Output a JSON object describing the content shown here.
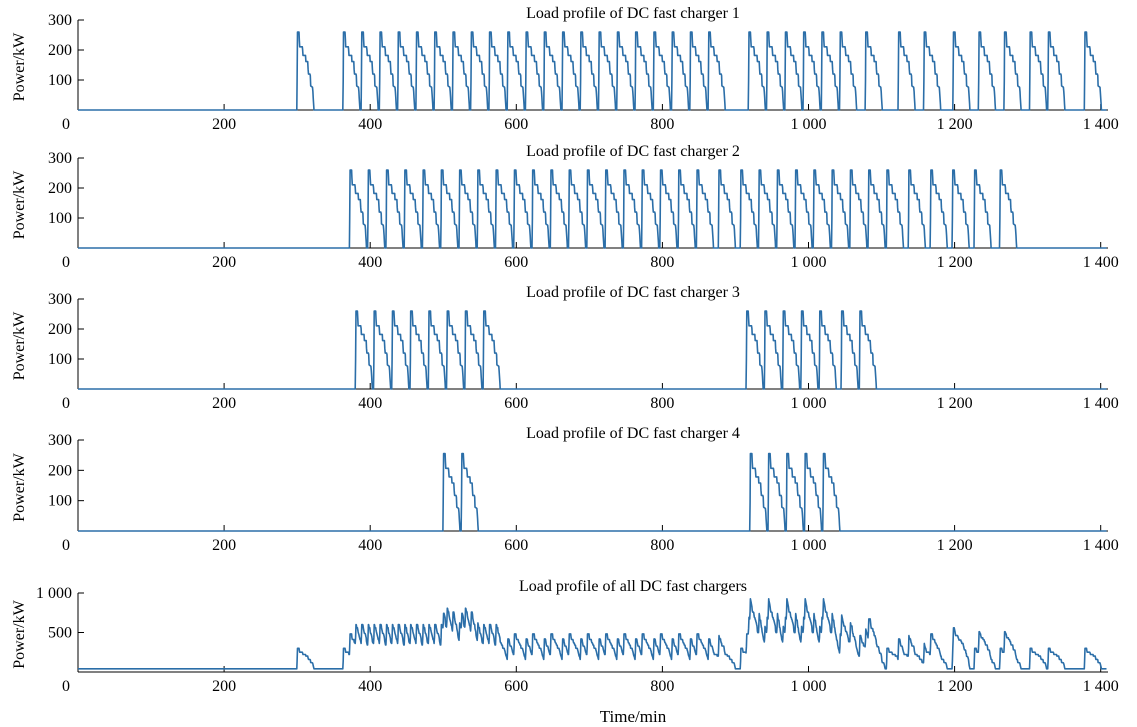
{
  "colors": {
    "line": "#2b6ea8",
    "axis": "#000000"
  },
  "chart_data": [
    {
      "type": "line",
      "title": "Load profile of DC fast charger 1",
      "ylabel": "Power/kW",
      "xlim": [
        0,
        1410
      ],
      "ylim": [
        0,
        300
      ],
      "yticks": [
        100,
        200,
        300
      ],
      "ytick_labels": [
        "100",
        "200",
        "300"
      ],
      "xticks": [
        0,
        200,
        400,
        600,
        800,
        1000,
        1200,
        1400
      ],
      "xtick_labels": [
        "0",
        "200",
        "400",
        "600",
        "800",
        "1 000",
        "1 200",
        "1 400"
      ],
      "session_peak_kw": 260,
      "session_length_min": 23,
      "session_starts_min": [
        300,
        363,
        388,
        413,
        438,
        463,
        488,
        513,
        538,
        563,
        588,
        613,
        638,
        663,
        688,
        713,
        738,
        763,
        788,
        813,
        838,
        863,
        918,
        943,
        968,
        993,
        1018,
        1043,
        1078,
        1123,
        1158,
        1198,
        1233,
        1268,
        1303,
        1328,
        1378
      ]
    },
    {
      "type": "line",
      "title": "Load profile of DC fast charger 2",
      "ylabel": "Power/kW",
      "xlim": [
        0,
        1410
      ],
      "ylim": [
        0,
        300
      ],
      "yticks": [
        100,
        200,
        300
      ],
      "ytick_labels": [
        "100",
        "200",
        "300"
      ],
      "xticks": [
        0,
        200,
        400,
        600,
        800,
        1000,
        1200,
        1400
      ],
      "xtick_labels": [
        "0",
        "200",
        "400",
        "600",
        "800",
        "1 000",
        "1 200",
        "1 400"
      ],
      "session_peak_kw": 260,
      "session_length_min": 23,
      "session_starts_min": [
        372,
        397,
        422,
        447,
        472,
        497,
        522,
        547,
        572,
        597,
        622,
        647,
        672,
        697,
        722,
        747,
        772,
        797,
        822,
        847,
        877,
        907,
        932,
        957,
        982,
        1007,
        1032,
        1057,
        1082,
        1107,
        1137,
        1167,
        1197,
        1227,
        1262
      ]
    },
    {
      "type": "line",
      "title": "Load profile of DC fast charger 3",
      "ylabel": "Power/kW",
      "xlim": [
        0,
        1410
      ],
      "ylim": [
        0,
        300
      ],
      "yticks": [
        100,
        200,
        300
      ],
      "ytick_labels": [
        "100",
        "200",
        "300"
      ],
      "xticks": [
        0,
        200,
        400,
        600,
        800,
        1000,
        1200,
        1400
      ],
      "xtick_labels": [
        "0",
        "200",
        "400",
        "600",
        "800",
        "1 000",
        "1 200",
        "1 400"
      ],
      "session_peak_kw": 260,
      "session_length_min": 23,
      "session_starts_min": [
        380,
        405,
        430,
        455,
        480,
        505,
        530,
        555,
        915,
        940,
        965,
        990,
        1015,
        1045,
        1070
      ]
    },
    {
      "type": "line",
      "title": "Load profile of DC fast charger 4",
      "ylabel": "Power/kW",
      "xlim": [
        0,
        1410
      ],
      "ylim": [
        0,
        300
      ],
      "yticks": [
        100,
        200,
        300
      ],
      "ytick_labels": [
        "100",
        "200",
        "300"
      ],
      "xticks": [
        0,
        200,
        400,
        600,
        800,
        1000,
        1200,
        1400
      ],
      "xtick_labels": [
        "0",
        "200",
        "400",
        "600",
        "800",
        "1 000",
        "1 200",
        "1 400"
      ],
      "session_peak_kw": 255,
      "session_length_min": 23,
      "session_starts_min": [
        500,
        525,
        920,
        945,
        970,
        995,
        1020
      ]
    },
    {
      "type": "line",
      "title": "Load profile of all DC fast chargers",
      "ylabel": "Power/kW",
      "xlabel": "Time/min",
      "xlim": [
        0,
        1410
      ],
      "ylim": [
        0,
        1000
      ],
      "yticks": [
        500,
        1000
      ],
      "ytick_labels": [
        "500",
        "1 000"
      ],
      "xticks": [
        0,
        200,
        400,
        600,
        800,
        1000,
        1200,
        1400
      ],
      "xtick_labels": [
        "0",
        "200",
        "400",
        "600",
        "800",
        "1 000",
        "1 200",
        "1 400"
      ],
      "baseline_kw": 40,
      "sum_of_series": [
        0,
        1,
        2,
        3
      ]
    }
  ]
}
